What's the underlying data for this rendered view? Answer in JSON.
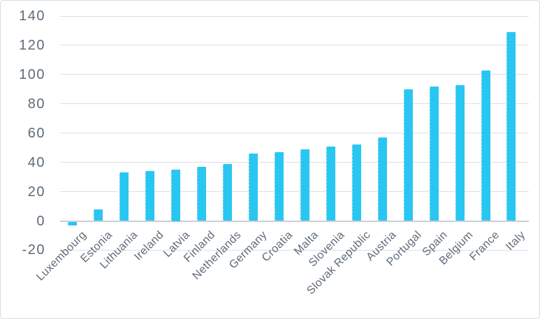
{
  "chart_data": {
    "type": "bar",
    "title": "",
    "xlabel": "",
    "ylabel": "",
    "categories": [
      "Luxembourg",
      "Estonia",
      "Lithuania",
      "Ireland",
      "Latvia",
      "Finland",
      "Netherlands",
      "Germany",
      "Croatia",
      "Malta",
      "Slovenia",
      "Slovak Republic",
      "Austria",
      "Portugal",
      "Spain",
      "Belgium",
      "France",
      "Italy"
    ],
    "values": [
      -3,
      8,
      33,
      34,
      35,
      37,
      39,
      46,
      47,
      49,
      51,
      52,
      57,
      90,
      92,
      93,
      103,
      129
    ],
    "ylim": [
      -20,
      140
    ],
    "ytick_interval": 20,
    "ytick_labels": [
      "140",
      "120",
      "100",
      "80",
      "60",
      "40",
      "20",
      "0",
      "-20"
    ],
    "grid": true,
    "legend": "none",
    "bar_color": "#2AC6F2",
    "gridline_color": "#DCDFE4",
    "zero_line_color": "#C9CFD7",
    "label_color": "#5D6B79",
    "frame_border_color": "#D7DBE1",
    "background_color": "#FFFFFF"
  }
}
